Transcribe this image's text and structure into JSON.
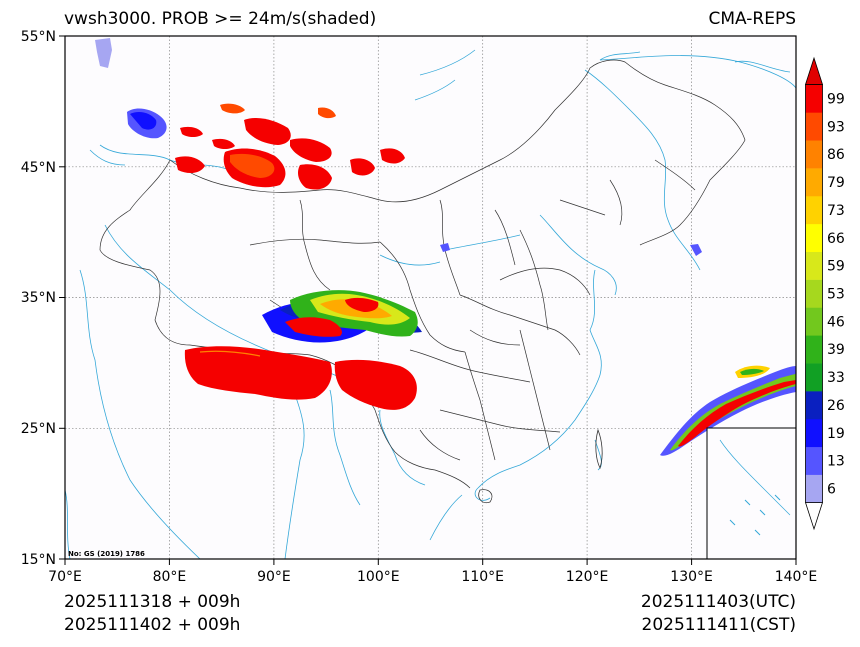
{
  "header": {
    "title_left": "vwsh3000. PROB >= 24m/s(shaded)",
    "title_right": "CMA-REPS"
  },
  "footer": {
    "run_utc": "2025111318  +  009h",
    "run_cst": "2025111402  +  009h",
    "valid_utc": "2025111403(UTC)",
    "valid_cst": "2025111411(CST)"
  },
  "map": {
    "approval_number": "No: GS (2019) 1786",
    "lon_ticks": [
      "70°E",
      "80°E",
      "90°E",
      "100°E",
      "110°E",
      "120°E",
      "130°E",
      "140°E"
    ],
    "lat_ticks": [
      "55°N",
      "45°N",
      "35°N",
      "25°N",
      "15°N"
    ]
  },
  "colorbar": {
    "labels": [
      "6",
      "13",
      "19",
      "26",
      "33",
      "39",
      "46",
      "53",
      "59",
      "66",
      "73",
      "79",
      "86",
      "93",
      "99"
    ],
    "colors": [
      "#a6a6f2",
      "#5555ff",
      "#1010ff",
      "#0a20c0",
      "#11a024",
      "#30b21a",
      "#72c81e",
      "#a6d81e",
      "#d8e81a",
      "#ffff00",
      "#ffd200",
      "#ffaa00",
      "#ff8200",
      "#ff4a00",
      "#f50000"
    ],
    "under_color": "#ffffff",
    "over_color": "#e00000"
  }
}
